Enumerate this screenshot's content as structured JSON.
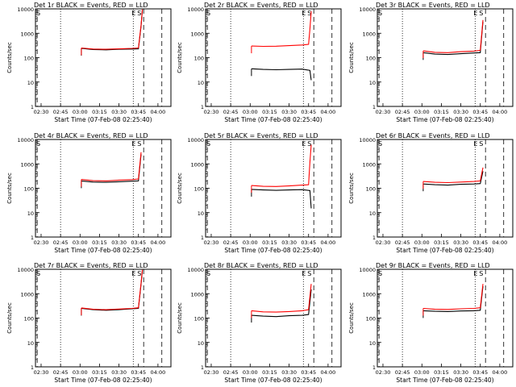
{
  "figure": {
    "x_axis_label": "Start Time (07-Feb-08 02:25:40)",
    "y_axis_label": "Counts/sec",
    "series_colors": {
      "events": "#000000",
      "lld": "#ff0000"
    },
    "event_marks": [
      "E",
      "S"
    ]
  },
  "chart_data": [
    {
      "type": "line",
      "title": "Det 1r BLACK = Events, RED = LLD",
      "xlabel": "Start Time (07-Feb-08 02:25:40)",
      "ylabel": "Counts/sec",
      "xlim": [
        "02:25:40",
        "04:10"
      ],
      "ylim": [
        1,
        10000
      ],
      "yscale": "log",
      "x_ticks": [
        "02:30",
        "02:45",
        "03:00",
        "03:15",
        "03:30",
        "03:45",
        "04:00"
      ],
      "y_ticks": [
        "1",
        "10",
        "100",
        "1000",
        "10000"
      ],
      "dotted_lines": [
        "02:45",
        "03:41"
      ],
      "dashed_lines": [
        "02:27",
        "03:49",
        "04:03"
      ],
      "series": [
        {
          "color": "#000000",
          "x": [
            "03:01",
            "03:10",
            "03:20",
            "03:30",
            "03:40",
            "03:45",
            "03:47",
            "03:48"
          ],
          "values": [
            240,
            215,
            210,
            220,
            225,
            230,
            2000,
            9000
          ]
        },
        {
          "color": "#ff0000",
          "x": [
            "03:01",
            "03:10",
            "03:20",
            "03:30",
            "03:40",
            "03:45",
            "03:47",
            "03:48"
          ],
          "values": [
            250,
            225,
            220,
            230,
            240,
            250,
            2200,
            9500
          ]
        }
      ]
    },
    {
      "type": "line",
      "title": "Det 2r BLACK = Events, RED = LLD",
      "xlabel": "Start Time (07-Feb-08 02:25:40)",
      "ylabel": "Counts/sec",
      "xlim": [
        "02:25:40",
        "04:10"
      ],
      "ylim": [
        1,
        10000
      ],
      "yscale": "log",
      "x_ticks": [
        "02:30",
        "02:45",
        "03:00",
        "03:15",
        "03:30",
        "03:45",
        "04:00"
      ],
      "y_ticks": [
        "1",
        "10",
        "100",
        "1000",
        "10000"
      ],
      "dotted_lines": [
        "02:45",
        "03:41"
      ],
      "dashed_lines": [
        "02:27",
        "03:49",
        "04:03"
      ],
      "series": [
        {
          "color": "#000000",
          "x": [
            "03:01",
            "03:10",
            "03:20",
            "03:30",
            "03:40",
            "03:46",
            "03:47"
          ],
          "values": [
            35,
            33,
            32,
            33,
            34,
            30,
            12
          ]
        },
        {
          "color": "#ff0000",
          "x": [
            "03:01",
            "03:10",
            "03:20",
            "03:30",
            "03:40",
            "03:45",
            "03:46",
            "03:47"
          ],
          "values": [
            300,
            290,
            295,
            310,
            330,
            350,
            1500,
            8000
          ]
        }
      ]
    },
    {
      "type": "line",
      "title": "Det 3r BLACK = Events, RED = LLD",
      "xlabel": "Start Time (07-Feb-08 02:25:40)",
      "ylabel": "Counts/sec",
      "xlim": [
        "02:25:40",
        "04:10"
      ],
      "ylim": [
        1,
        10000
      ],
      "yscale": "log",
      "x_ticks": [
        "02:30",
        "02:45",
        "03:00",
        "03:15",
        "03:30",
        "03:45",
        "04:00"
      ],
      "y_ticks": [
        "1",
        "10",
        "100",
        "1000",
        "10000"
      ],
      "dotted_lines": [
        "02:45",
        "03:41"
      ],
      "dashed_lines": [
        "02:27",
        "03:49",
        "04:03"
      ],
      "series": [
        {
          "color": "#000000",
          "x": [
            "03:01",
            "03:10",
            "03:20",
            "03:30",
            "03:40",
            "03:45",
            "03:47"
          ],
          "values": [
            160,
            140,
            135,
            145,
            155,
            160,
            3000
          ]
        },
        {
          "color": "#ff0000",
          "x": [
            "03:01",
            "03:10",
            "03:20",
            "03:30",
            "03:40",
            "03:45",
            "03:47"
          ],
          "values": [
            190,
            165,
            160,
            175,
            185,
            200,
            3500
          ]
        }
      ]
    },
    {
      "type": "line",
      "title": "Det 4r BLACK = Events, RED = LLD",
      "xlabel": "Start Time (07-Feb-08 02:25:40)",
      "ylabel": "Counts/sec",
      "xlim": [
        "02:25:40",
        "04:10"
      ],
      "ylim": [
        1,
        10000
      ],
      "yscale": "log",
      "x_ticks": [
        "02:30",
        "02:45",
        "03:00",
        "03:15",
        "03:30",
        "03:45",
        "04:00"
      ],
      "y_ticks": [
        "1",
        "10",
        "100",
        "1000",
        "10000"
      ],
      "dotted_lines": [
        "02:45",
        "03:41"
      ],
      "dashed_lines": [
        "02:27",
        "03:49",
        "04:03"
      ],
      "series": [
        {
          "color": "#000000",
          "x": [
            "03:01",
            "03:10",
            "03:20",
            "03:30",
            "03:40",
            "03:45",
            "03:47"
          ],
          "values": [
            200,
            180,
            175,
            185,
            195,
            200,
            2500
          ]
        },
        {
          "color": "#ff0000",
          "x": [
            "03:01",
            "03:10",
            "03:20",
            "03:30",
            "03:40",
            "03:45",
            "03:47"
          ],
          "values": [
            230,
            205,
            200,
            215,
            225,
            240,
            3000
          ]
        }
      ]
    },
    {
      "type": "line",
      "title": "Det 5r BLACK = Events, RED = LLD",
      "xlabel": "Start Time (07-Feb-08 02:25:40)",
      "ylabel": "Counts/sec",
      "xlim": [
        "02:25:40",
        "04:10"
      ],
      "ylim": [
        1,
        10000
      ],
      "yscale": "log",
      "x_ticks": [
        "02:30",
        "02:45",
        "03:00",
        "03:15",
        "03:30",
        "03:45",
        "04:00"
      ],
      "y_ticks": [
        "1",
        "10",
        "100",
        "1000",
        "10000"
      ],
      "dotted_lines": [
        "02:45",
        "03:41"
      ],
      "dashed_lines": [
        "02:27",
        "03:49",
        "04:03"
      ],
      "series": [
        {
          "color": "#000000",
          "x": [
            "03:01",
            "03:10",
            "03:20",
            "03:30",
            "03:40",
            "03:46",
            "03:47"
          ],
          "values": [
            90,
            85,
            82,
            85,
            88,
            80,
            15
          ]
        },
        {
          "color": "#ff0000",
          "x": [
            "03:01",
            "03:10",
            "03:20",
            "03:30",
            "03:40",
            "03:45",
            "03:46",
            "03:47"
          ],
          "values": [
            130,
            120,
            118,
            125,
            135,
            140,
            1200,
            6000
          ]
        }
      ]
    },
    {
      "type": "line",
      "title": "Det 6r BLACK = Events, RED = LLD",
      "xlabel": "Start Time (07-Feb-08 02:25:40)",
      "ylabel": "Counts/sec",
      "xlim": [
        "02:25:40",
        "04:10"
      ],
      "ylim": [
        1,
        10000
      ],
      "yscale": "log",
      "x_ticks": [
        "02:30",
        "02:45",
        "03:00",
        "03:15",
        "03:30",
        "03:45",
        "04:00"
      ],
      "y_ticks": [
        "1",
        "10",
        "100",
        "1000",
        "10000"
      ],
      "dotted_lines": [
        "02:45",
        "03:41"
      ],
      "dashed_lines": [
        "02:27",
        "03:49",
        "04:03"
      ],
      "series": [
        {
          "color": "#000000",
          "x": [
            "03:01",
            "03:10",
            "03:20",
            "03:30",
            "03:40",
            "03:45",
            "03:47"
          ],
          "values": [
            150,
            140,
            135,
            145,
            150,
            155,
            500
          ]
        },
        {
          "color": "#ff0000",
          "x": [
            "03:01",
            "03:10",
            "03:20",
            "03:30",
            "03:40",
            "03:45",
            "03:47"
          ],
          "values": [
            190,
            175,
            170,
            180,
            190,
            200,
            700
          ]
        }
      ]
    },
    {
      "type": "line",
      "title": "Det 7r BLACK = Events, RED = LLD",
      "xlabel": "Start Time (07-Feb-08 02:25:40)",
      "ylabel": "Counts/sec",
      "xlim": [
        "02:25:40",
        "04:10"
      ],
      "ylim": [
        1,
        10000
      ],
      "yscale": "log",
      "x_ticks": [
        "02:30",
        "02:45",
        "03:00",
        "03:15",
        "03:30",
        "03:45",
        "04:00"
      ],
      "y_ticks": [
        "1",
        "10",
        "100",
        "1000",
        "10000"
      ],
      "dotted_lines": [
        "02:45",
        "03:41"
      ],
      "dashed_lines": [
        "02:27",
        "03:49",
        "04:03"
      ],
      "series": [
        {
          "color": "#000000",
          "x": [
            "03:01",
            "03:10",
            "03:20",
            "03:30",
            "03:40",
            "03:45",
            "03:47",
            "03:48"
          ],
          "values": [
            250,
            220,
            210,
            220,
            240,
            250,
            2500,
            9000
          ]
        },
        {
          "color": "#ff0000",
          "x": [
            "03:01",
            "03:10",
            "03:20",
            "03:30",
            "03:40",
            "03:45",
            "03:47",
            "03:48"
          ],
          "values": [
            260,
            230,
            220,
            235,
            250,
            265,
            2800,
            9500
          ]
        }
      ]
    },
    {
      "type": "line",
      "title": "Det 8r BLACK = Events, RED = LLD",
      "xlabel": "Start Time (07-Feb-08 02:25:40)",
      "ylabel": "Counts/sec",
      "xlim": [
        "02:25:40",
        "04:10"
      ],
      "ylim": [
        1,
        10000
      ],
      "yscale": "log",
      "x_ticks": [
        "02:30",
        "02:45",
        "03:00",
        "03:15",
        "03:30",
        "03:45",
        "04:00"
      ],
      "y_ticks": [
        "1",
        "10",
        "100",
        "1000",
        "10000"
      ],
      "dotted_lines": [
        "02:45",
        "03:41"
      ],
      "dashed_lines": [
        "02:27",
        "03:49",
        "04:03"
      ],
      "series": [
        {
          "color": "#000000",
          "x": [
            "03:01",
            "03:10",
            "03:20",
            "03:30",
            "03:40",
            "03:45",
            "03:47"
          ],
          "values": [
            130,
            120,
            115,
            125,
            130,
            140,
            1500
          ]
        },
        {
          "color": "#ff0000",
          "x": [
            "03:01",
            "03:10",
            "03:20",
            "03:30",
            "03:40",
            "03:45",
            "03:47"
          ],
          "values": [
            200,
            180,
            175,
            185,
            200,
            220,
            2500
          ]
        }
      ]
    },
    {
      "type": "line",
      "title": "Det 9r BLACK = Events, RED = LLD",
      "xlabel": "Start Time (07-Feb-08 02:25:40)",
      "ylabel": "Counts/sec",
      "xlim": [
        "02:25:40",
        "04:10"
      ],
      "ylim": [
        1,
        10000
      ],
      "yscale": "log",
      "x_ticks": [
        "02:30",
        "02:45",
        "03:00",
        "03:15",
        "03:30",
        "03:45",
        "04:00"
      ],
      "y_ticks": [
        "1",
        "10",
        "100",
        "1000",
        "10000"
      ],
      "dotted_lines": [
        "02:45",
        "03:41"
      ],
      "dashed_lines": [
        "02:27",
        "03:49",
        "04:03"
      ],
      "series": [
        {
          "color": "#000000",
          "x": [
            "03:01",
            "03:10",
            "03:20",
            "03:30",
            "03:40",
            "03:45",
            "03:47"
          ],
          "values": [
            200,
            190,
            185,
            195,
            200,
            210,
            2000
          ]
        },
        {
          "color": "#ff0000",
          "x": [
            "03:01",
            "03:10",
            "03:20",
            "03:30",
            "03:40",
            "03:45",
            "03:47"
          ],
          "values": [
            250,
            230,
            225,
            240,
            250,
            265,
            2500
          ]
        }
      ]
    }
  ]
}
